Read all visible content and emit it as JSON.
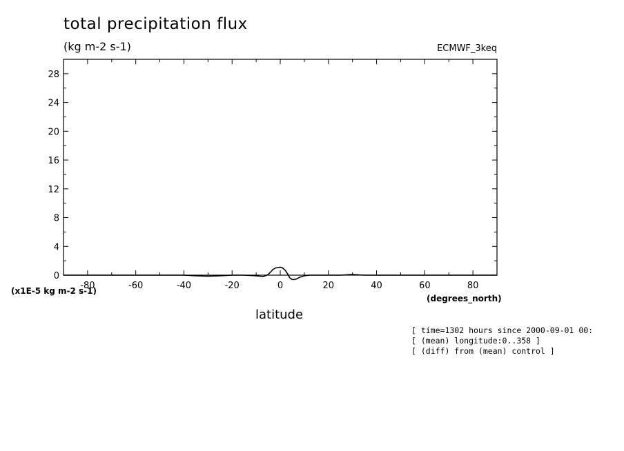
{
  "chart_data": {
    "type": "line",
    "title": "total precipitation flux",
    "units_label": "(kg m-2 s-1)",
    "dataset_label": "ECMWF_3keq",
    "y_scale_label": "(x1E-5 kg m-2 s-1)",
    "x_units_label": "(degrees_north)",
    "xlabel": "latitude",
    "xlim": [
      -90,
      90
    ],
    "ylim": [
      0,
      30
    ],
    "x_ticks": [
      -80,
      -60,
      -40,
      -20,
      0,
      20,
      40,
      60,
      80
    ],
    "x_tick_labels": [
      "-80",
      "-60",
      "-40",
      "-20",
      "0",
      "20",
      "40",
      "60",
      "80"
    ],
    "y_ticks": [
      0,
      4,
      8,
      12,
      16,
      20,
      24,
      28
    ],
    "y_tick_labels": [
      "0",
      "4",
      "8",
      "12",
      "16",
      "20",
      "24",
      "28"
    ],
    "grid": false,
    "series": [
      {
        "x": [
          -90,
          -80,
          -70,
          -60,
          -50,
          -40,
          -35,
          -30,
          -25,
          -20,
          -15,
          -10,
          -7,
          -5,
          -3,
          -2,
          0,
          1,
          2,
          3,
          4,
          5,
          6,
          7,
          8,
          10,
          12,
          15,
          20,
          25,
          30,
          35,
          40,
          50,
          60,
          70,
          80,
          90
        ],
        "values": [
          0,
          0,
          0,
          0,
          0,
          0,
          -0.1,
          -0.15,
          -0.1,
          0,
          0,
          -0.1,
          -0.2,
          0.1,
          0.8,
          1.0,
          1.1,
          1.0,
          0.7,
          0.2,
          -0.4,
          -0.6,
          -0.6,
          -0.5,
          -0.3,
          -0.1,
          0,
          0,
          0,
          0,
          0.1,
          0,
          0,
          0,
          0,
          0,
          0,
          0
        ]
      }
    ]
  },
  "annotations": [
    "[ time=1302 hours since 2000-09-01 00:",
    "[ (mean) longitude:0..358 ]",
    "[ (diff) from (mean) control ]"
  ]
}
